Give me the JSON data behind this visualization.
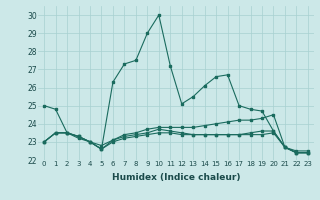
{
  "background_color": "#cce8e8",
  "grid_color": "#a8d0d0",
  "line_color": "#1a6b5e",
  "xlim": [
    -0.5,
    23.5
  ],
  "ylim": [
    22,
    30.5
  ],
  "yticks": [
    22,
    23,
    24,
    25,
    26,
    27,
    28,
    29,
    30
  ],
  "xticks": [
    0,
    1,
    2,
    3,
    4,
    5,
    6,
    7,
    8,
    9,
    10,
    11,
    12,
    13,
    14,
    15,
    16,
    17,
    18,
    19,
    20,
    21,
    22,
    23
  ],
  "xlabel": "Humidex (Indice chaleur)",
  "series": [
    [
      25.0,
      24.8,
      23.5,
      23.3,
      23.0,
      22.6,
      26.3,
      27.3,
      27.5,
      29.0,
      30.0,
      27.2,
      25.1,
      25.5,
      26.1,
      26.6,
      26.7,
      25.0,
      24.8,
      24.7,
      23.6,
      22.7,
      22.5,
      22.5
    ],
    [
      23.0,
      23.5,
      23.5,
      23.3,
      23.0,
      22.8,
      23.1,
      23.4,
      23.5,
      23.7,
      23.8,
      23.8,
      23.8,
      23.8,
      23.9,
      24.0,
      24.1,
      24.2,
      24.2,
      24.3,
      24.5,
      22.7,
      22.4,
      22.4
    ],
    [
      23.0,
      23.5,
      23.5,
      23.2,
      23.0,
      22.6,
      23.0,
      23.2,
      23.3,
      23.4,
      23.5,
      23.5,
      23.4,
      23.4,
      23.4,
      23.4,
      23.4,
      23.4,
      23.4,
      23.4,
      23.5,
      22.7,
      22.4,
      22.4
    ],
    [
      23.0,
      23.5,
      23.5,
      23.3,
      23.0,
      22.6,
      23.1,
      23.3,
      23.4,
      23.5,
      23.7,
      23.6,
      23.5,
      23.4,
      23.4,
      23.4,
      23.4,
      23.4,
      23.5,
      23.6,
      23.6,
      22.7,
      22.4,
      22.4
    ]
  ]
}
